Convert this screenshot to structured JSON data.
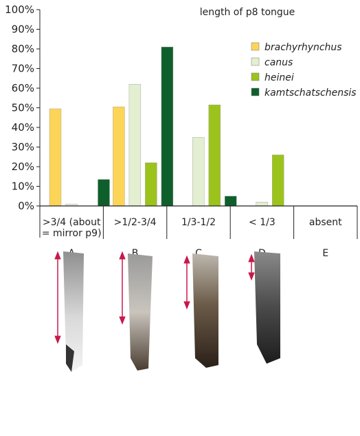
{
  "chart_data": {
    "type": "bar",
    "title": "length of p8 tongue",
    "categories": [
      ">3/4 (about = mirror p9)",
      ">1/2-3/4",
      "1/3-1/2",
      "< 1/3",
      "absent"
    ],
    "category_lines": [
      [
        ">3/4 (about",
        "= mirror p9)"
      ],
      [
        ">1/2-3/4"
      ],
      [
        "1/3-1/2"
      ],
      [
        "< 1/3"
      ],
      [
        "absent"
      ]
    ],
    "category_letters": [
      "A",
      "B",
      "C",
      "D",
      "E"
    ],
    "yticks": [
      "0%",
      "10%",
      "20%",
      "30%",
      "40%",
      "50%",
      "60%",
      "70%",
      "80%",
      "90%",
      "100%"
    ],
    "ylim": [
      0,
      100
    ],
    "grid": false,
    "legend_position": "top-right",
    "series": [
      {
        "name": "brachyrhynchus",
        "color": "#fcd457",
        "values": [
          49.5,
          50.5,
          0,
          0,
          0
        ]
      },
      {
        "name": "canus",
        "color": "#e3efd0",
        "values": [
          1,
          62,
          35,
          2,
          0
        ]
      },
      {
        "name": "heinei",
        "color": "#9cc31c",
        "values": [
          0,
          22,
          51.5,
          26,
          0
        ]
      },
      {
        "name": "kamtschatschensis",
        "color": "#0f5f2c",
        "values": [
          13.5,
          81,
          5,
          0,
          0
        ]
      }
    ]
  },
  "colors": {
    "arrow": "#c8184a",
    "axis": "#222222"
  }
}
